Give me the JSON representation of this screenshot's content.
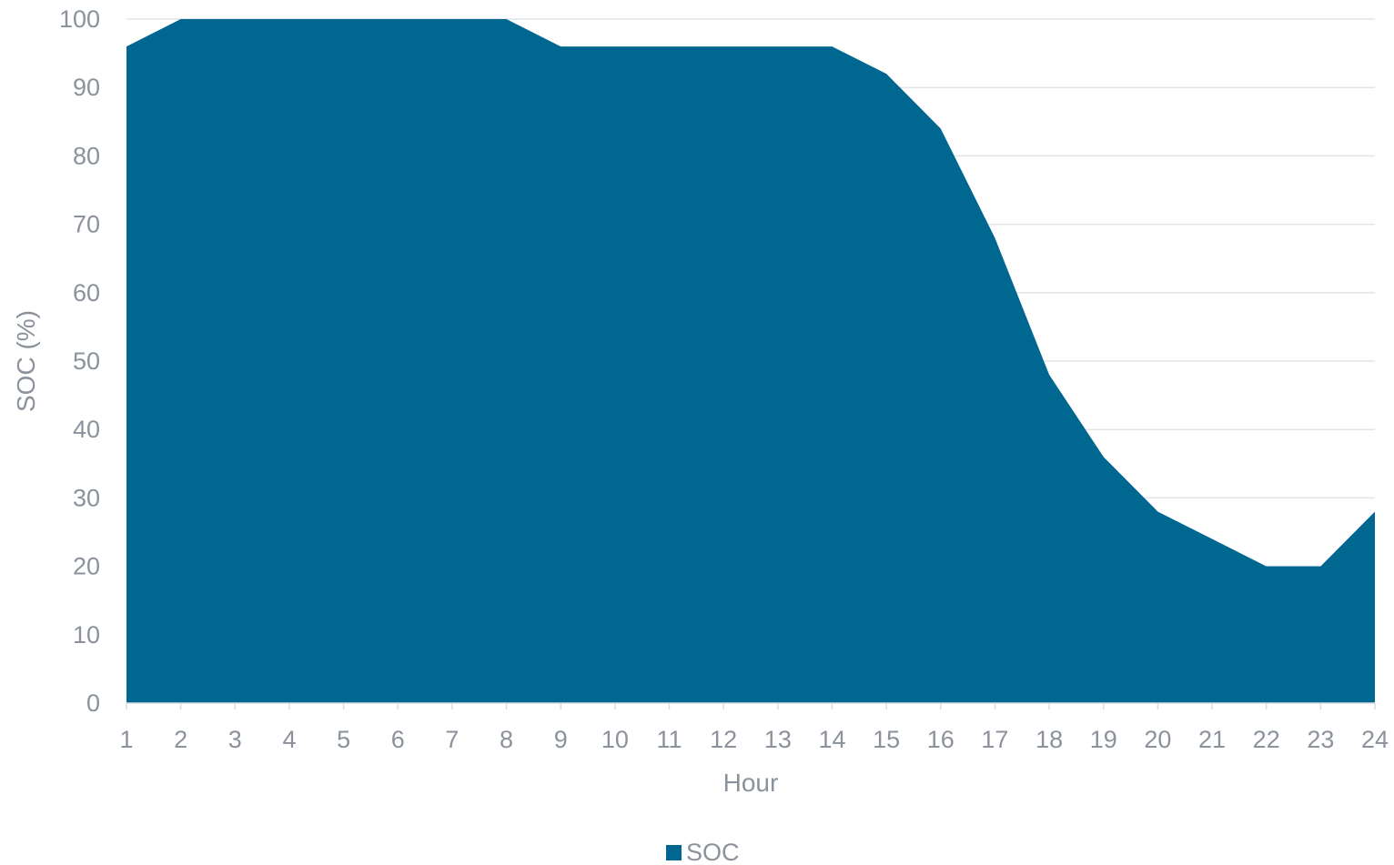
{
  "chart_data": {
    "type": "area",
    "title": "",
    "xlabel": "Hour",
    "ylabel": "SOC (%)",
    "x": [
      1,
      2,
      3,
      4,
      5,
      6,
      7,
      8,
      9,
      10,
      11,
      12,
      13,
      14,
      15,
      16,
      17,
      18,
      19,
      20,
      21,
      22,
      23,
      24
    ],
    "series": [
      {
        "name": "SOC",
        "color": "#006791",
        "values": [
          96,
          100,
          100,
          100,
          100,
          100,
          100,
          100,
          96,
          96,
          96,
          96,
          96,
          96,
          92,
          84,
          68,
          48,
          36,
          28,
          24,
          20,
          20,
          28
        ]
      }
    ],
    "ylim": [
      0,
      100
    ],
    "yticks": [
      0,
      10,
      20,
      30,
      40,
      50,
      60,
      70,
      80,
      90,
      100
    ],
    "grid": true,
    "legend": "bottom-center"
  }
}
